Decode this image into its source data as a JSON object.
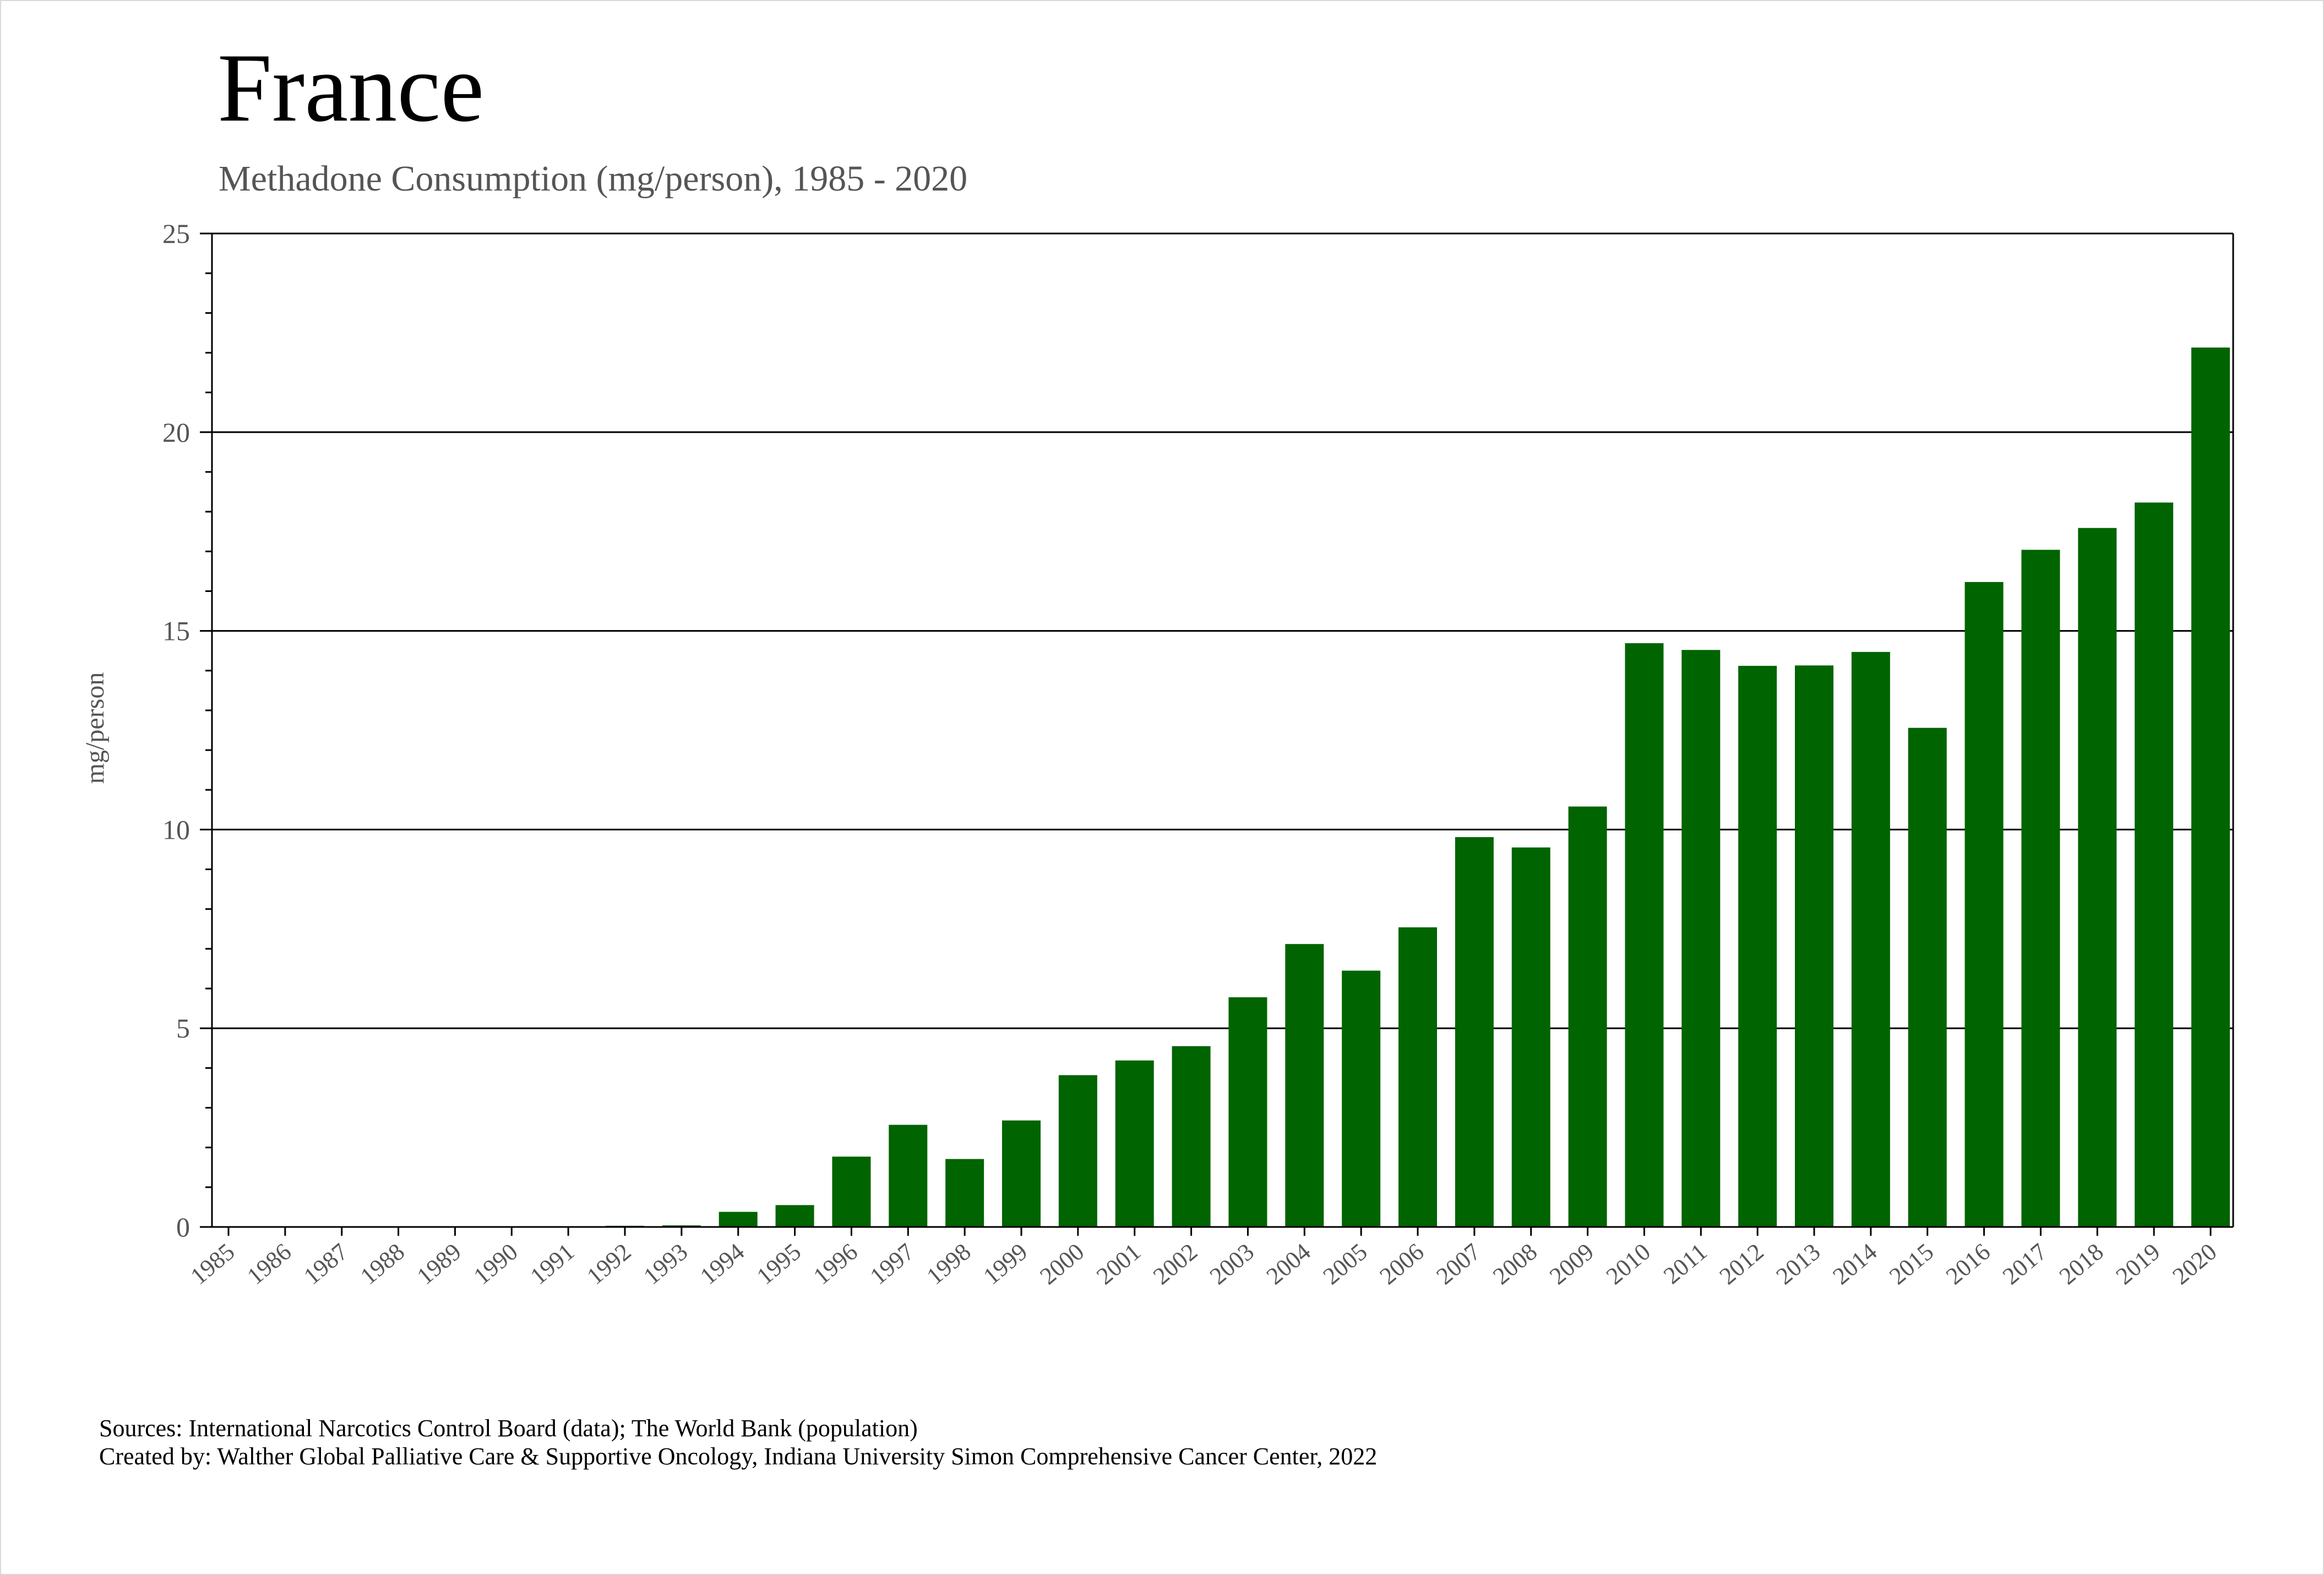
{
  "chart": {
    "title": "France",
    "subtitle": "Methadone Consumption (mg/person), 1985 - 2020",
    "footer_sources": "Sources: International Narcotics Control Board (data); The World Bank (population)",
    "footer_created": "Created by: Walther Global Palliative Care & Supportive Oncology, Indiana University Simon Comprehensive Cancer Center, 2022"
  },
  "chart_data": {
    "type": "bar",
    "title": "France",
    "subtitle": "Methadone Consumption (mg/person), 1985 - 2020",
    "xlabel": "",
    "ylabel": "mg/person",
    "ylim": [
      0,
      25
    ],
    "yticks": [
      0,
      5,
      10,
      15,
      20,
      25
    ],
    "grid": true,
    "bar_color": "#006400",
    "categories": [
      "1985",
      "1986",
      "1987",
      "1988",
      "1989",
      "1990",
      "1991",
      "1992",
      "1993",
      "1994",
      "1995",
      "1996",
      "1997",
      "1998",
      "1999",
      "2000",
      "2001",
      "2002",
      "2003",
      "2004",
      "2005",
      "2006",
      "2007",
      "2008",
      "2009",
      "2010",
      "2011",
      "2012",
      "2013",
      "2014",
      "2015",
      "2016",
      "2017",
      "2018",
      "2019",
      "2020"
    ],
    "values": [
      0.01,
      0.01,
      0.01,
      0.01,
      0.01,
      0.01,
      0.02,
      0.03,
      0.04,
      0.38,
      0.55,
      1.77,
      2.57,
      1.71,
      2.68,
      3.82,
      4.19,
      4.55,
      5.78,
      7.12,
      6.45,
      7.54,
      9.81,
      9.55,
      10.58,
      14.69,
      14.52,
      14.12,
      14.13,
      14.47,
      12.56,
      16.23,
      17.04,
      17.59,
      18.23,
      22.13
    ]
  }
}
